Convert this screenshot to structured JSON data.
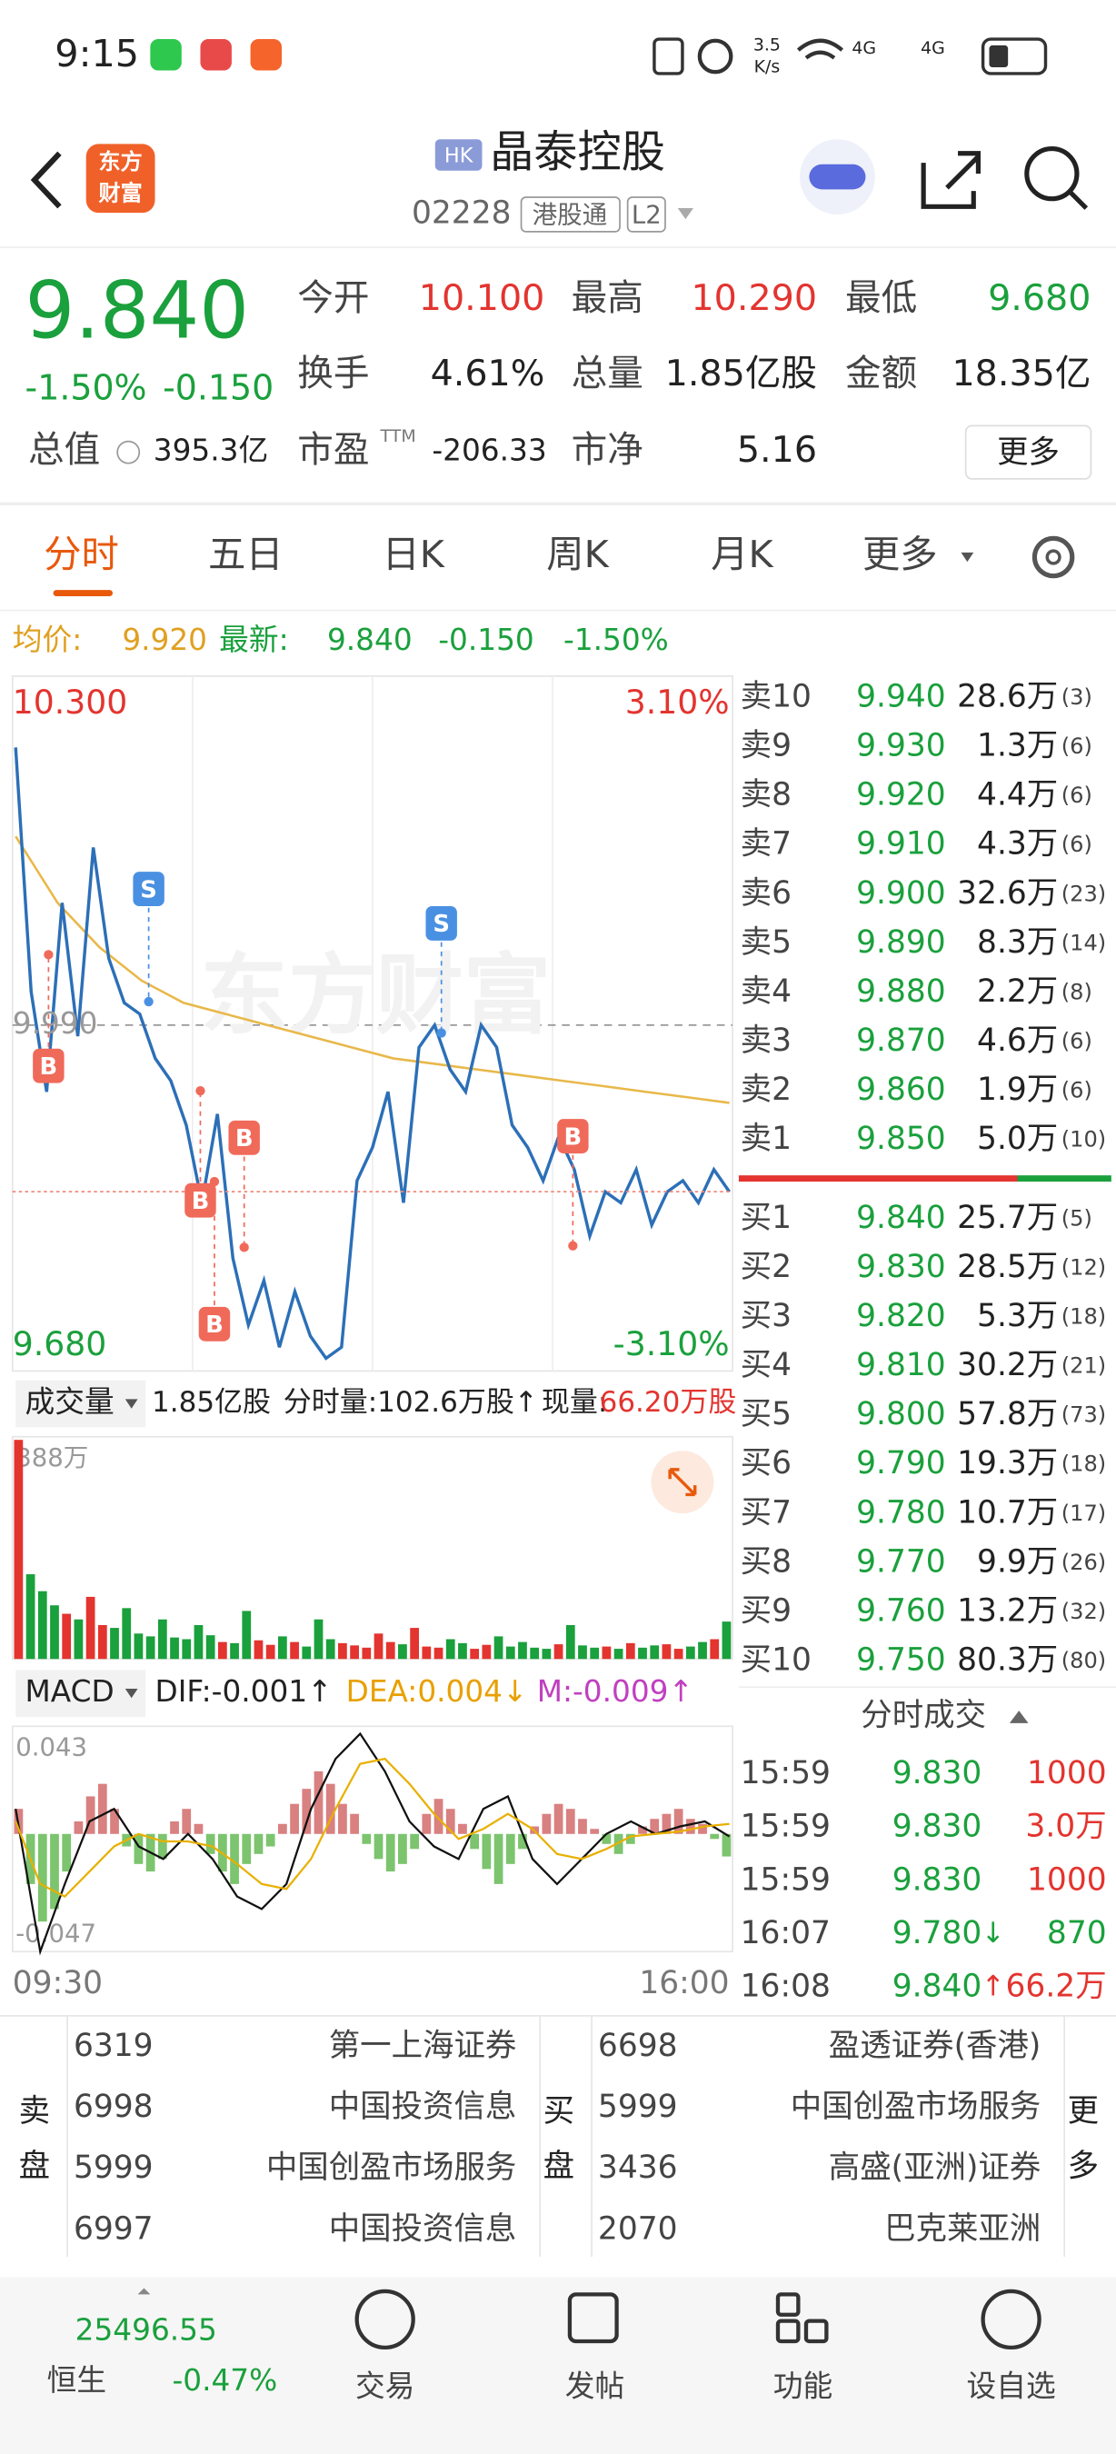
{
  "status_bar": {
    "time": "9:15",
    "speed_value": "3.5",
    "speed_unit": "K/s",
    "network_1": "4G",
    "network_2": "4G"
  },
  "header": {
    "logo_line_1": "东方",
    "logo_line_2": "财富",
    "market_badge": "HK",
    "name": "晶泰控股",
    "code": "02228",
    "tag_1": "港股通",
    "tag_2": "L2"
  },
  "quote": {
    "price": "9.840",
    "change_pct": "-1.50%",
    "change": "-0.150",
    "fields": [
      {
        "label": "今开",
        "value": "10.100"
      },
      {
        "label": "最高",
        "value": "10.290"
      },
      {
        "label": "最低",
        "value": "9.680"
      },
      {
        "label": "换手",
        "value": "4.61%"
      },
      {
        "label": "总量",
        "value": "1.85亿股"
      },
      {
        "label": "金额",
        "value": "18.35亿"
      },
      {
        "label": "总值",
        "value": "395.3亿"
      },
      {
        "label": "市盈",
        "sup": "TTM",
        "value": "-206.33"
      },
      {
        "label": "市净",
        "value": "5.16"
      }
    ],
    "more_button": "更多"
  },
  "tabs": [
    "分时",
    "五日",
    "日K",
    "周K",
    "月K",
    "更多"
  ],
  "info_line": {
    "avg_label": "均价:",
    "avg": "9.920",
    "latest_label": "最新:",
    "latest": "9.840",
    "change": "-0.150",
    "change_pct": "-1.50%"
  },
  "intraday_chart": {
    "type": "line",
    "watermark": "东方财富",
    "ylim": [
      9.68,
      10.3
    ],
    "y_max_label": "10.300",
    "y_min_label": "9.680",
    "pct_max_label": "3.10%",
    "pct_min_label": "-3.10%",
    "ref_label": "9.990",
    "price": [
      10.24,
      10.02,
      9.93,
      10.1,
      9.98,
      10.15,
      10.05,
      10.01,
      10.0,
      9.96,
      9.94,
      9.9,
      9.83,
      9.91,
      9.78,
      9.72,
      9.76,
      9.7,
      9.75,
      9.71,
      9.69,
      9.7,
      9.85,
      9.88,
      9.93,
      9.83,
      9.97,
      9.99,
      9.95,
      9.93,
      9.99,
      9.97,
      9.9,
      9.88,
      9.85,
      9.89,
      9.86,
      9.8,
      9.84,
      9.83,
      9.86,
      9.81,
      9.84,
      9.85,
      9.83,
      9.86,
      9.84
    ],
    "average": [
      10.16,
      10.1,
      10.06,
      10.03,
      10.01,
      10.0,
      9.99,
      9.98,
      9.97,
      9.96,
      9.955,
      9.95,
      9.945,
      9.94,
      9.935,
      9.93,
      9.925,
      9.92
    ],
    "markers": [
      "S",
      "B",
      "B",
      "B",
      "B",
      "S",
      "B"
    ]
  },
  "volume_chart": {
    "type": "bar",
    "selector": "成交量",
    "total": "1.85亿股",
    "period_volume": "分时量:102.6万股↑",
    "current_label": "现量:",
    "current": "66.20万股",
    "ylim": [
      0,
      388
    ],
    "y_max_label": "388万",
    "values": [
      388,
      150,
      120,
      95,
      80,
      70,
      110,
      60,
      55,
      90,
      45,
      40,
      70,
      38,
      35,
      60,
      42,
      30,
      28,
      85,
      33,
      25,
      40,
      30,
      22,
      70,
      35,
      28,
      24,
      20,
      45,
      30,
      26,
      55,
      22,
      20,
      35,
      28,
      18,
      25,
      40,
      22,
      30,
      20,
      18,
      26,
      60,
      24,
      20,
      22,
      18,
      28,
      20,
      24,
      26,
      18,
      22,
      30,
      35,
      66.2
    ]
  },
  "macd_chart": {
    "type": "bar",
    "selector": "MACD",
    "dif_label": "DIF:-0.001↑",
    "dea_label": "DEA:0.004↓",
    "m_label": "M:-0.009↑",
    "ylim": [
      -0.047,
      0.043
    ],
    "y_max_label": "0.043",
    "y_min_label": "-0.047",
    "x_start": "09:30",
    "x_end": "16:00",
    "histogram": [
      0.01,
      -0.02,
      -0.035,
      -0.03,
      -0.015,
      0.005,
      0.015,
      0.02,
      0.01,
      -0.005,
      -0.012,
      -0.015,
      -0.01,
      0.005,
      0.01,
      0.004,
      -0.008,
      -0.015,
      -0.02,
      -0.012,
      -0.008,
      -0.005,
      0.004,
      0.012,
      0.018,
      0.025,
      0.02,
      0.012,
      0.008,
      -0.004,
      -0.01,
      -0.015,
      -0.012,
      -0.006,
      0.008,
      0.014,
      0.01,
      0.004,
      -0.006,
      -0.014,
      -0.02,
      -0.012,
      -0.006,
      0.003,
      0.008,
      0.012,
      0.01,
      0.006,
      0.002,
      -0.004,
      -0.008,
      -0.004,
      0.003,
      0.006,
      0.008,
      0.01,
      0.006,
      0.004,
      -0.002,
      -0.009
    ],
    "dif": [
      0.01,
      -0.047,
      -0.02,
      0.005,
      0.01,
      -0.005,
      -0.01,
      0.0,
      -0.01,
      -0.025,
      -0.03,
      -0.02,
      0.01,
      0.03,
      0.04,
      0.025,
      0.005,
      -0.005,
      -0.01,
      0.01,
      0.015,
      -0.01,
      -0.02,
      -0.01,
      0.0,
      0.005,
      0.0,
      0.003,
      0.005,
      -0.001
    ],
    "dea": [
      0.005,
      -0.02,
      -0.025,
      -0.015,
      -0.005,
      0.0,
      -0.003,
      -0.003,
      -0.005,
      -0.012,
      -0.02,
      -0.022,
      -0.01,
      0.01,
      0.028,
      0.03,
      0.02,
      0.008,
      -0.002,
      0.002,
      0.008,
      0.002,
      -0.008,
      -0.01,
      -0.006,
      -0.001,
      0.0,
      0.001,
      0.003,
      0.004
    ]
  },
  "order_book": {
    "asks": [
      {
        "label": "卖10",
        "price": "9.940",
        "volume": "28.6万",
        "count": "(3)"
      },
      {
        "label": "卖9",
        "price": "9.930",
        "volume": "1.3万",
        "count": "(6)"
      },
      {
        "label": "卖8",
        "price": "9.920",
        "volume": "4.4万",
        "count": "(6)"
      },
      {
        "label": "卖7",
        "price": "9.910",
        "volume": "4.3万",
        "count": "(6)"
      },
      {
        "label": "卖6",
        "price": "9.900",
        "volume": "32.6万",
        "count": "(23)"
      },
      {
        "label": "卖5",
        "price": "9.890",
        "volume": "8.3万",
        "count": "(14)"
      },
      {
        "label": "卖4",
        "price": "9.880",
        "volume": "2.2万",
        "count": "(8)"
      },
      {
        "label": "卖3",
        "price": "9.870",
        "volume": "4.6万",
        "count": "(6)"
      },
      {
        "label": "卖2",
        "price": "9.860",
        "volume": "1.9万",
        "count": "(6)"
      },
      {
        "label": "卖1",
        "price": "9.850",
        "volume": "5.0万",
        "count": "(10)"
      }
    ],
    "bids": [
      {
        "label": "买1",
        "price": "9.840",
        "volume": "25.7万",
        "count": "(5)"
      },
      {
        "label": "买2",
        "price": "9.830",
        "volume": "28.5万",
        "count": "(12)"
      },
      {
        "label": "买3",
        "price": "9.820",
        "volume": "5.3万",
        "count": "(18)"
      },
      {
        "label": "买4",
        "price": "9.810",
        "volume": "30.2万",
        "count": "(21)"
      },
      {
        "label": "买5",
        "price": "9.800",
        "volume": "57.8万",
        "count": "(73)"
      },
      {
        "label": "买6",
        "price": "9.790",
        "volume": "19.3万",
        "count": "(18)"
      },
      {
        "label": "买7",
        "price": "9.780",
        "volume": "10.7万",
        "count": "(17)"
      },
      {
        "label": "买8",
        "price": "9.770",
        "volume": "9.9万",
        "count": "(26)"
      },
      {
        "label": "买9",
        "price": "9.760",
        "volume": "13.2万",
        "count": "(32)"
      },
      {
        "label": "买10",
        "price": "9.750",
        "volume": "80.3万",
        "count": "(80)"
      }
    ]
  },
  "trades": {
    "title": "分时成交",
    "rows": [
      {
        "time": "15:59",
        "price": "9.830",
        "volume": "1000"
      },
      {
        "time": "15:59",
        "price": "9.830",
        "volume": "3.0万"
      },
      {
        "time": "15:59",
        "price": "9.830",
        "volume": "1000"
      },
      {
        "time": "16:07",
        "price": "9.780",
        "arrow": "↓",
        "volume": "870"
      },
      {
        "time": "16:08",
        "price": "9.840",
        "arrow": "↑",
        "volume": "66.2万"
      }
    ]
  },
  "brokers": {
    "sell_label_1": "卖",
    "sell_label_2": "盘",
    "buy_label_1": "买",
    "buy_label_2": "盘",
    "more_1": "更",
    "more_2": "多",
    "sell": [
      [
        "6319",
        "第一上海证券"
      ],
      [
        "6998",
        "中国投资信息"
      ],
      [
        "5999",
        "中国创盈市场服务"
      ],
      [
        "6997",
        "中国投资信息"
      ]
    ],
    "buy": [
      [
        "6698",
        "盈透证券(香港)"
      ],
      [
        "5999",
        "中国创盈市场服务"
      ],
      [
        "3436",
        "高盛(亚洲)证券"
      ],
      [
        "2070",
        "巴克莱亚洲"
      ]
    ]
  },
  "bottom_nav": {
    "index_value": "25496.55",
    "index_name": "恒生",
    "index_change": "-0.47%",
    "items": [
      "交易",
      "发帖",
      "功能",
      "设自选"
    ]
  }
}
